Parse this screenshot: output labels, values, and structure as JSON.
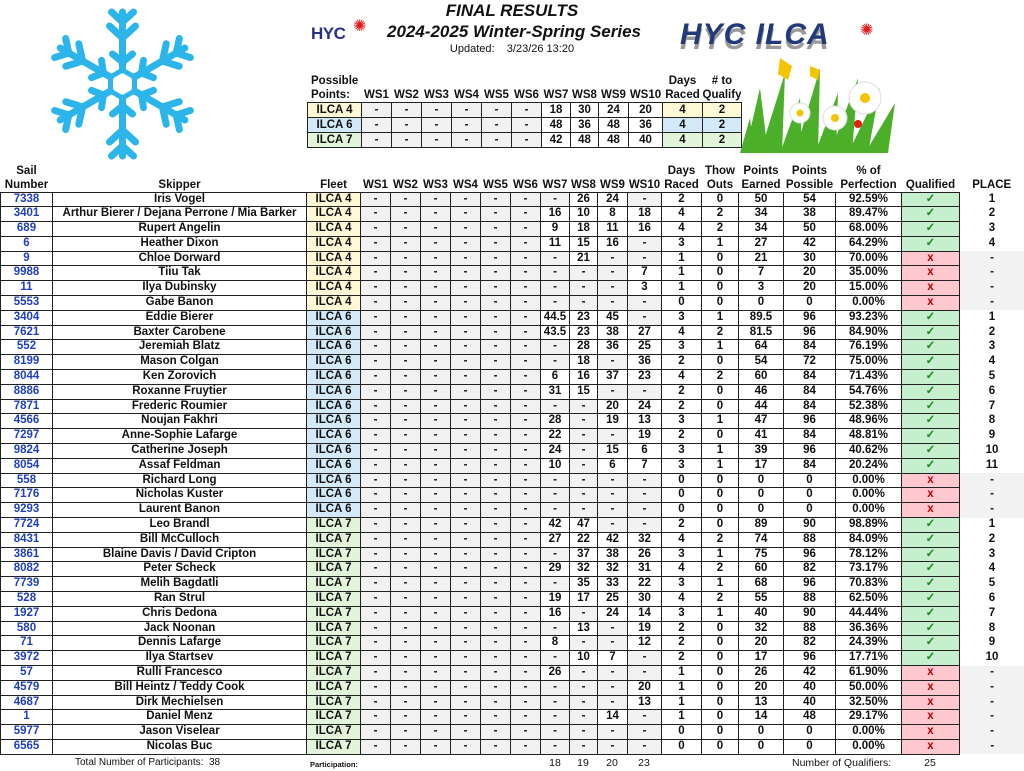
{
  "header": {
    "title": "FINAL RESULTS",
    "series": "2024-2025 Winter-Spring Series",
    "updated_label": "Updated:",
    "updated_value": "3/23/26 13:20",
    "logo_left": "HYC",
    "logo_right": "HYC ILCA"
  },
  "possible_points": {
    "label": "Possible\nPoints:",
    "columns": [
      "WS1",
      "WS2",
      "WS3",
      "WS4",
      "WS5",
      "WS6",
      "WS7",
      "WS8",
      "WS9",
      "WS10",
      "Days\nRaced",
      "# to\nQualify"
    ],
    "rows": [
      {
        "fleet": "ILCA 4",
        "ws": [
          "-",
          "-",
          "-",
          "-",
          "-",
          "-",
          "18",
          "30",
          "24",
          "20"
        ],
        "days": "4",
        "qualify": "2"
      },
      {
        "fleet": "ILCA 6",
        "ws": [
          "-",
          "-",
          "-",
          "-",
          "-",
          "-",
          "48",
          "36",
          "48",
          "36"
        ],
        "days": "4",
        "qualify": "2"
      },
      {
        "fleet": "ILCA 7",
        "ws": [
          "-",
          "-",
          "-",
          "-",
          "-",
          "-",
          "42",
          "48",
          "48",
          "40"
        ],
        "days": "4",
        "qualify": "2"
      }
    ]
  },
  "colors": {
    "ilca4": "#fff8d6",
    "ilca6": "#d3e9f8",
    "ilca7": "#e2f5da",
    "qualified": "#c6efce",
    "not_qualified": "#ffc7ce",
    "sail_number": "#1f3fbf"
  },
  "icons": {
    "qualified": "check-icon",
    "not_qualified": "x-icon",
    "check_glyph": "✓",
    "x_glyph": "x"
  },
  "results": {
    "columns": [
      "Sail\nNumber",
      "Skipper",
      "Fleet",
      "WS1",
      "WS2",
      "WS3",
      "WS4",
      "WS5",
      "WS6",
      "WS7",
      "WS8",
      "WS9",
      "WS10",
      "Days\nRaced",
      "Thow\nOuts",
      "Points\nEarned",
      "Points\nPossible",
      "% of\nPerfection",
      "Qualified",
      "PLACE"
    ],
    "rows": [
      {
        "sail": "7338",
        "skipper": "Iris Vogel",
        "fleet": "ILCA 4",
        "ws": [
          "-",
          "-",
          "-",
          "-",
          "-",
          "-",
          "-",
          "26",
          "24",
          "-"
        ],
        "days": "2",
        "throw": "0",
        "earned": "50",
        "possible": "54",
        "perf": "92.59%",
        "qualified": true,
        "place": "1"
      },
      {
        "sail": "3401",
        "skipper": "Arthur Bierer / Dejana Perrone / Mia Barker",
        "fleet": "ILCA 4",
        "ws": [
          "-",
          "-",
          "-",
          "-",
          "-",
          "-",
          "16",
          "10",
          "8",
          "18"
        ],
        "days": "4",
        "throw": "2",
        "earned": "34",
        "possible": "38",
        "perf": "89.47%",
        "qualified": true,
        "place": "2"
      },
      {
        "sail": "689",
        "skipper": "Rupert Angelin",
        "fleet": "ILCA 4",
        "ws": [
          "-",
          "-",
          "-",
          "-",
          "-",
          "-",
          "9",
          "18",
          "11",
          "16"
        ],
        "days": "4",
        "throw": "2",
        "earned": "34",
        "possible": "50",
        "perf": "68.00%",
        "qualified": true,
        "place": "3"
      },
      {
        "sail": "6",
        "skipper": "Heather Dixon",
        "fleet": "ILCA 4",
        "ws": [
          "-",
          "-",
          "-",
          "-",
          "-",
          "-",
          "11",
          "15",
          "16",
          "-"
        ],
        "days": "3",
        "throw": "1",
        "earned": "27",
        "possible": "42",
        "perf": "64.29%",
        "qualified": true,
        "place": "4"
      },
      {
        "sail": "9",
        "skipper": "Chloe Dorward",
        "fleet": "ILCA 4",
        "ws": [
          "-",
          "-",
          "-",
          "-",
          "-",
          "-",
          "-",
          "21",
          "-",
          "-"
        ],
        "days": "1",
        "throw": "0",
        "earned": "21",
        "possible": "30",
        "perf": "70.00%",
        "qualified": false,
        "place": "-"
      },
      {
        "sail": "9988",
        "skipper": "Tiiu Tak",
        "fleet": "ILCA 4",
        "ws": [
          "-",
          "-",
          "-",
          "-",
          "-",
          "-",
          "-",
          "-",
          "-",
          "7"
        ],
        "days": "1",
        "throw": "0",
        "earned": "7",
        "possible": "20",
        "perf": "35.00%",
        "qualified": false,
        "place": "-"
      },
      {
        "sail": "11",
        "skipper": "Ilya Dubinsky",
        "fleet": "ILCA 4",
        "ws": [
          "-",
          "-",
          "-",
          "-",
          "-",
          "-",
          "-",
          "-",
          "-",
          "3"
        ],
        "days": "1",
        "throw": "0",
        "earned": "3",
        "possible": "20",
        "perf": "15.00%",
        "qualified": false,
        "place": "-"
      },
      {
        "sail": "5553",
        "skipper": "Gabe Banon",
        "fleet": "ILCA 4",
        "ws": [
          "-",
          "-",
          "-",
          "-",
          "-",
          "-",
          "-",
          "-",
          "-",
          "-"
        ],
        "days": "0",
        "throw": "0",
        "earned": "0",
        "possible": "0",
        "perf": "0.00%",
        "qualified": false,
        "place": "-"
      },
      {
        "sail": "3404",
        "skipper": "Eddie Bierer",
        "fleet": "ILCA 6",
        "ws": [
          "-",
          "-",
          "-",
          "-",
          "-",
          "-",
          "44.5",
          "23",
          "45",
          "-"
        ],
        "days": "3",
        "throw": "1",
        "earned": "89.5",
        "possible": "96",
        "perf": "93.23%",
        "qualified": true,
        "place": "1"
      },
      {
        "sail": "7621",
        "skipper": "Baxter Carobene",
        "fleet": "ILCA 6",
        "ws": [
          "-",
          "-",
          "-",
          "-",
          "-",
          "-",
          "43.5",
          "23",
          "38",
          "27"
        ],
        "days": "4",
        "throw": "2",
        "earned": "81.5",
        "possible": "96",
        "perf": "84.90%",
        "qualified": true,
        "place": "2"
      },
      {
        "sail": "552",
        "skipper": "Jeremiah Blatz",
        "fleet": "ILCA 6",
        "ws": [
          "-",
          "-",
          "-",
          "-",
          "-",
          "-",
          "-",
          "28",
          "36",
          "25"
        ],
        "days": "3",
        "throw": "1",
        "earned": "64",
        "possible": "84",
        "perf": "76.19%",
        "qualified": true,
        "place": "3"
      },
      {
        "sail": "8199",
        "skipper": "Mason Colgan",
        "fleet": "ILCA 6",
        "ws": [
          "-",
          "-",
          "-",
          "-",
          "-",
          "-",
          "-",
          "18",
          "-",
          "36"
        ],
        "days": "2",
        "throw": "0",
        "earned": "54",
        "possible": "72",
        "perf": "75.00%",
        "qualified": true,
        "place": "4"
      },
      {
        "sail": "8044",
        "skipper": "Ken Zorovich",
        "fleet": "ILCA 6",
        "ws": [
          "-",
          "-",
          "-",
          "-",
          "-",
          "-",
          "6",
          "16",
          "37",
          "23"
        ],
        "days": "4",
        "throw": "2",
        "earned": "60",
        "possible": "84",
        "perf": "71.43%",
        "qualified": true,
        "place": "5"
      },
      {
        "sail": "8886",
        "skipper": "Roxanne Fruytier",
        "fleet": "ILCA 6",
        "ws": [
          "-",
          "-",
          "-",
          "-",
          "-",
          "-",
          "31",
          "15",
          "-",
          "-"
        ],
        "days": "2",
        "throw": "0",
        "earned": "46",
        "possible": "84",
        "perf": "54.76%",
        "qualified": true,
        "place": "6"
      },
      {
        "sail": "7871",
        "skipper": "Frederic Roumier",
        "fleet": "ILCA 6",
        "ws": [
          "-",
          "-",
          "-",
          "-",
          "-",
          "-",
          "-",
          "-",
          "20",
          "24"
        ],
        "days": "2",
        "throw": "0",
        "earned": "44",
        "possible": "84",
        "perf": "52.38%",
        "qualified": true,
        "place": "7"
      },
      {
        "sail": "4566",
        "skipper": "Noujan Fakhri",
        "fleet": "ILCA 6",
        "ws": [
          "-",
          "-",
          "-",
          "-",
          "-",
          "-",
          "28",
          "-",
          "19",
          "13"
        ],
        "days": "3",
        "throw": "1",
        "earned": "47",
        "possible": "96",
        "perf": "48.96%",
        "qualified": true,
        "place": "8"
      },
      {
        "sail": "7297",
        "skipper": "Anne-Sophie Lafarge",
        "fleet": "ILCA 6",
        "ws": [
          "-",
          "-",
          "-",
          "-",
          "-",
          "-",
          "22",
          "-",
          "-",
          "19"
        ],
        "days": "2",
        "throw": "0",
        "earned": "41",
        "possible": "84",
        "perf": "48.81%",
        "qualified": true,
        "place": "9"
      },
      {
        "sail": "9824",
        "skipper": "Catherine Joseph",
        "fleet": "ILCA 6",
        "ws": [
          "-",
          "-",
          "-",
          "-",
          "-",
          "-",
          "24",
          "-",
          "15",
          "6"
        ],
        "days": "3",
        "throw": "1",
        "earned": "39",
        "possible": "96",
        "perf": "40.62%",
        "qualified": true,
        "place": "10"
      },
      {
        "sail": "8054",
        "skipper": "Assaf Feldman",
        "fleet": "ILCA 6",
        "ws": [
          "-",
          "-",
          "-",
          "-",
          "-",
          "-",
          "10",
          "-",
          "6",
          "7"
        ],
        "days": "3",
        "throw": "1",
        "earned": "17",
        "possible": "84",
        "perf": "20.24%",
        "qualified": true,
        "place": "11"
      },
      {
        "sail": "558",
        "skipper": "Richard Long",
        "fleet": "ILCA 6",
        "ws": [
          "-",
          "-",
          "-",
          "-",
          "-",
          "-",
          "-",
          "-",
          "-",
          "-"
        ],
        "days": "0",
        "throw": "0",
        "earned": "0",
        "possible": "0",
        "perf": "0.00%",
        "qualified": false,
        "place": "-"
      },
      {
        "sail": "7176",
        "skipper": "Nicholas Kuster",
        "fleet": "ILCA 6",
        "ws": [
          "-",
          "-",
          "-",
          "-",
          "-",
          "-",
          "-",
          "-",
          "-",
          "-"
        ],
        "days": "0",
        "throw": "0",
        "earned": "0",
        "possible": "0",
        "perf": "0.00%",
        "qualified": false,
        "place": "-"
      },
      {
        "sail": "9293",
        "skipper": "Laurent Banon",
        "fleet": "ILCA 6",
        "ws": [
          "-",
          "-",
          "-",
          "-",
          "-",
          "-",
          "-",
          "-",
          "-",
          "-"
        ],
        "days": "0",
        "throw": "0",
        "earned": "0",
        "possible": "0",
        "perf": "0.00%",
        "qualified": false,
        "place": "-"
      },
      {
        "sail": "7724",
        "skipper": "Leo Brandl",
        "fleet": "ILCA 7",
        "ws": [
          "-",
          "-",
          "-",
          "-",
          "-",
          "-",
          "42",
          "47",
          "-",
          "-"
        ],
        "days": "2",
        "throw": "0",
        "earned": "89",
        "possible": "90",
        "perf": "98.89%",
        "qualified": true,
        "place": "1"
      },
      {
        "sail": "8431",
        "skipper": "Bill McCulloch",
        "fleet": "ILCA 7",
        "ws": [
          "-",
          "-",
          "-",
          "-",
          "-",
          "-",
          "27",
          "22",
          "42",
          "32"
        ],
        "days": "4",
        "throw": "2",
        "earned": "74",
        "possible": "88",
        "perf": "84.09%",
        "qualified": true,
        "place": "2"
      },
      {
        "sail": "3861",
        "skipper": "Blaine Davis / David Cripton",
        "fleet": "ILCA 7",
        "ws": [
          "-",
          "-",
          "-",
          "-",
          "-",
          "-",
          "-",
          "37",
          "38",
          "26"
        ],
        "days": "3",
        "throw": "1",
        "earned": "75",
        "possible": "96",
        "perf": "78.12%",
        "qualified": true,
        "place": "3"
      },
      {
        "sail": "8082",
        "skipper": "Peter Scheck",
        "fleet": "ILCA 7",
        "ws": [
          "-",
          "-",
          "-",
          "-",
          "-",
          "-",
          "29",
          "32",
          "32",
          "31"
        ],
        "days": "4",
        "throw": "2",
        "earned": "60",
        "possible": "82",
        "perf": "73.17%",
        "qualified": true,
        "place": "4"
      },
      {
        "sail": "7739",
        "skipper": "Melih Bagdatli",
        "fleet": "ILCA 7",
        "ws": [
          "-",
          "-",
          "-",
          "-",
          "-",
          "-",
          "-",
          "35",
          "33",
          "22"
        ],
        "days": "3",
        "throw": "1",
        "earned": "68",
        "possible": "96",
        "perf": "70.83%",
        "qualified": true,
        "place": "5"
      },
      {
        "sail": "528",
        "skipper": "Ran Strul",
        "fleet": "ILCA 7",
        "ws": [
          "-",
          "-",
          "-",
          "-",
          "-",
          "-",
          "19",
          "17",
          "25",
          "30"
        ],
        "days": "4",
        "throw": "2",
        "earned": "55",
        "possible": "88",
        "perf": "62.50%",
        "qualified": true,
        "place": "6"
      },
      {
        "sail": "1927",
        "skipper": "Chris Dedona",
        "fleet": "ILCA 7",
        "ws": [
          "-",
          "-",
          "-",
          "-",
          "-",
          "-",
          "16",
          "-",
          "24",
          "14"
        ],
        "days": "3",
        "throw": "1",
        "earned": "40",
        "possible": "90",
        "perf": "44.44%",
        "qualified": true,
        "place": "7"
      },
      {
        "sail": "580",
        "skipper": "Jack Noonan",
        "fleet": "ILCA 7",
        "ws": [
          "-",
          "-",
          "-",
          "-",
          "-",
          "-",
          "-",
          "13",
          "-",
          "19"
        ],
        "days": "2",
        "throw": "0",
        "earned": "32",
        "possible": "88",
        "perf": "36.36%",
        "qualified": true,
        "place": "8"
      },
      {
        "sail": "71",
        "skipper": "Dennis Lafarge",
        "fleet": "ILCA 7",
        "ws": [
          "-",
          "-",
          "-",
          "-",
          "-",
          "-",
          "8",
          "-",
          "-",
          "12"
        ],
        "days": "2",
        "throw": "0",
        "earned": "20",
        "possible": "82",
        "perf": "24.39%",
        "qualified": true,
        "place": "9"
      },
      {
        "sail": "3972",
        "skipper": "Ilya Startsev",
        "fleet": "ILCA 7",
        "ws": [
          "-",
          "-",
          "-",
          "-",
          "-",
          "-",
          "-",
          "10",
          "7",
          "-"
        ],
        "days": "2",
        "throw": "0",
        "earned": "17",
        "possible": "96",
        "perf": "17.71%",
        "qualified": true,
        "place": "10"
      },
      {
        "sail": "57",
        "skipper": "Rulli Francesco",
        "fleet": "ILCA 7",
        "ws": [
          "-",
          "-",
          "-",
          "-",
          "-",
          "-",
          "26",
          "-",
          "-",
          "-"
        ],
        "days": "1",
        "throw": "0",
        "earned": "26",
        "possible": "42",
        "perf": "61.90%",
        "qualified": false,
        "place": "-"
      },
      {
        "sail": "4579",
        "skipper": "Bill Heintz / Teddy Cook",
        "fleet": "ILCA 7",
        "ws": [
          "-",
          "-",
          "-",
          "-",
          "-",
          "-",
          "-",
          "-",
          "-",
          "20"
        ],
        "days": "1",
        "throw": "0",
        "earned": "20",
        "possible": "40",
        "perf": "50.00%",
        "qualified": false,
        "place": "-"
      },
      {
        "sail": "4687",
        "skipper": "Dirk Mechielsen",
        "fleet": "ILCA 7",
        "ws": [
          "-",
          "-",
          "-",
          "-",
          "-",
          "-",
          "-",
          "-",
          "-",
          "13"
        ],
        "days": "1",
        "throw": "0",
        "earned": "13",
        "possible": "40",
        "perf": "32.50%",
        "qualified": false,
        "place": "-"
      },
      {
        "sail": "1",
        "skipper": "Daniel Menz",
        "fleet": "ILCA 7",
        "ws": [
          "-",
          "-",
          "-",
          "-",
          "-",
          "-",
          "-",
          "-",
          "14",
          "-"
        ],
        "days": "1",
        "throw": "0",
        "earned": "14",
        "possible": "48",
        "perf": "29.17%",
        "qualified": false,
        "place": "-"
      },
      {
        "sail": "5977",
        "skipper": "Jason Viselear",
        "fleet": "ILCA 7",
        "ws": [
          "-",
          "-",
          "-",
          "-",
          "-",
          "-",
          "-",
          "-",
          "-",
          "-"
        ],
        "days": "0",
        "throw": "0",
        "earned": "0",
        "possible": "0",
        "perf": "0.00%",
        "qualified": false,
        "place": "-"
      },
      {
        "sail": "6565",
        "skipper": "Nicolas Buc",
        "fleet": "ILCA 7",
        "ws": [
          "-",
          "-",
          "-",
          "-",
          "-",
          "-",
          "-",
          "-",
          "-",
          "-"
        ],
        "days": "0",
        "throw": "0",
        "earned": "0",
        "possible": "0",
        "perf": "0.00%",
        "qualified": false,
        "place": "-"
      }
    ]
  },
  "footer": {
    "participants_label": "Total Number of Participants:",
    "participants_value": "38",
    "participation_label": "Participation:",
    "participation": [
      "18",
      "19",
      "20",
      "23"
    ],
    "qualifiers_label": "Number of Qualifiers:",
    "qualifiers_value": "25"
  }
}
